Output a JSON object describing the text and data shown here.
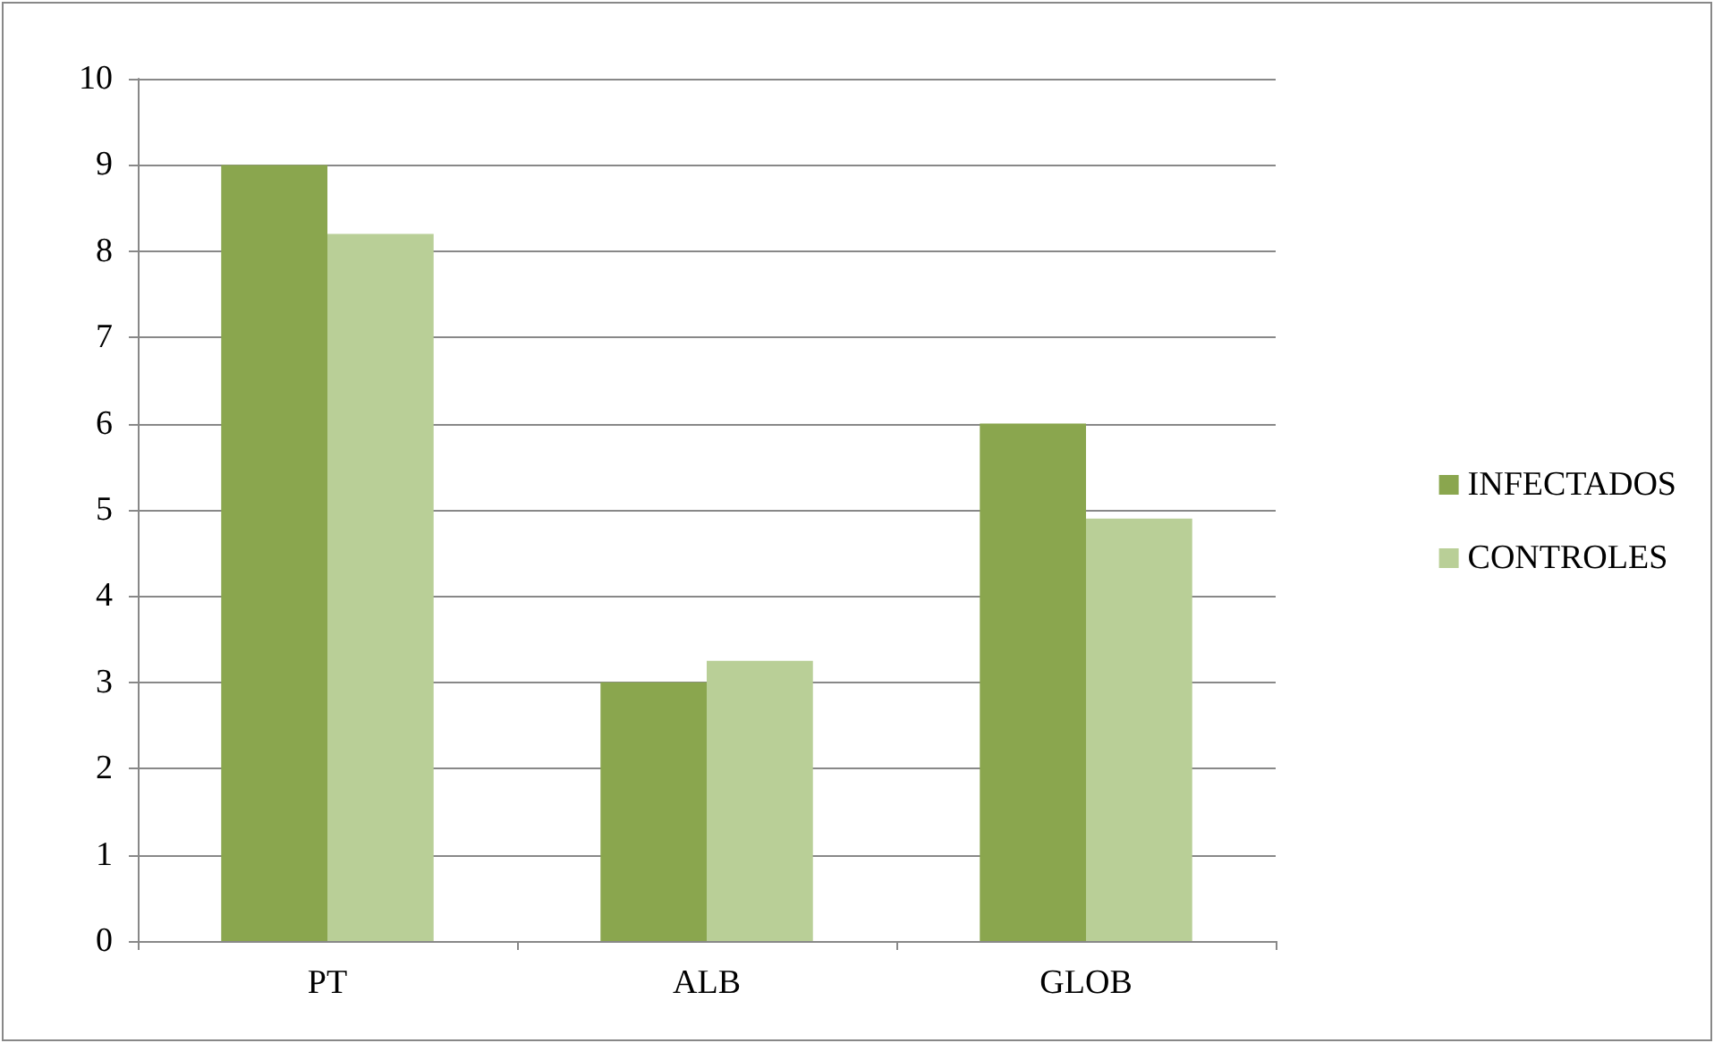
{
  "chart_data": {
    "type": "bar",
    "categories": [
      "PT",
      "ALB",
      "GLOB"
    ],
    "series": [
      {
        "name": "INFECTADOS",
        "color": "#8aa64e",
        "values": [
          9,
          3,
          6
        ]
      },
      {
        "name": "CONTROLES",
        "color": "#b9cf97",
        "values": [
          8.2,
          3.25,
          4.9
        ]
      }
    ],
    "ylim": [
      0,
      10
    ],
    "yticks": [
      0,
      1,
      2,
      3,
      4,
      5,
      6,
      7,
      8,
      9,
      10
    ],
    "grid": "y",
    "legend": "right"
  }
}
